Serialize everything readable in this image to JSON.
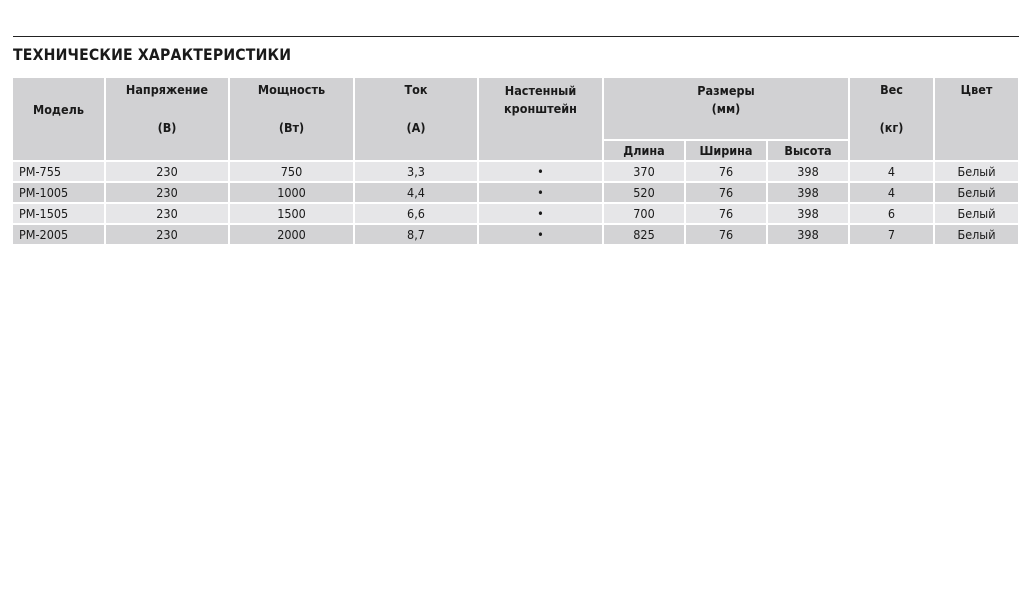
{
  "title": "ТЕХНИЧЕСКИЕ ХАРАКТЕРИСТИКИ",
  "headers": {
    "model": "Модель",
    "voltage": "Напряжение",
    "voltage_unit": "(В)",
    "power": "Мощность",
    "power_unit": "(Вт)",
    "current": "Ток",
    "current_unit": "(А)",
    "bracket_1": "Настенный",
    "bracket_2": "кронштейн",
    "dims_1": "Размеры",
    "dims_2": "(мм)",
    "length": "Длина",
    "width": "Ширина",
    "height": "Высота",
    "weight": "Вес",
    "weight_unit": "(кг)",
    "color": "Цвет"
  },
  "rows": [
    [
      "PM-755",
      "230",
      "750",
      "3,3",
      "•",
      "370",
      "76",
      "398",
      "4",
      "Белый"
    ],
    [
      "PM-1005",
      "230",
      "1000",
      "4,4",
      "•",
      "520",
      "76",
      "398",
      "4",
      "Белый"
    ],
    [
      "PM-1505",
      "230",
      "1500",
      "6,6",
      "•",
      "700",
      "76",
      "398",
      "6",
      "Белый"
    ],
    [
      "PM-2005",
      "230",
      "2000",
      "8,7",
      "•",
      "825",
      "76",
      "398",
      "7",
      "Белый"
    ]
  ]
}
